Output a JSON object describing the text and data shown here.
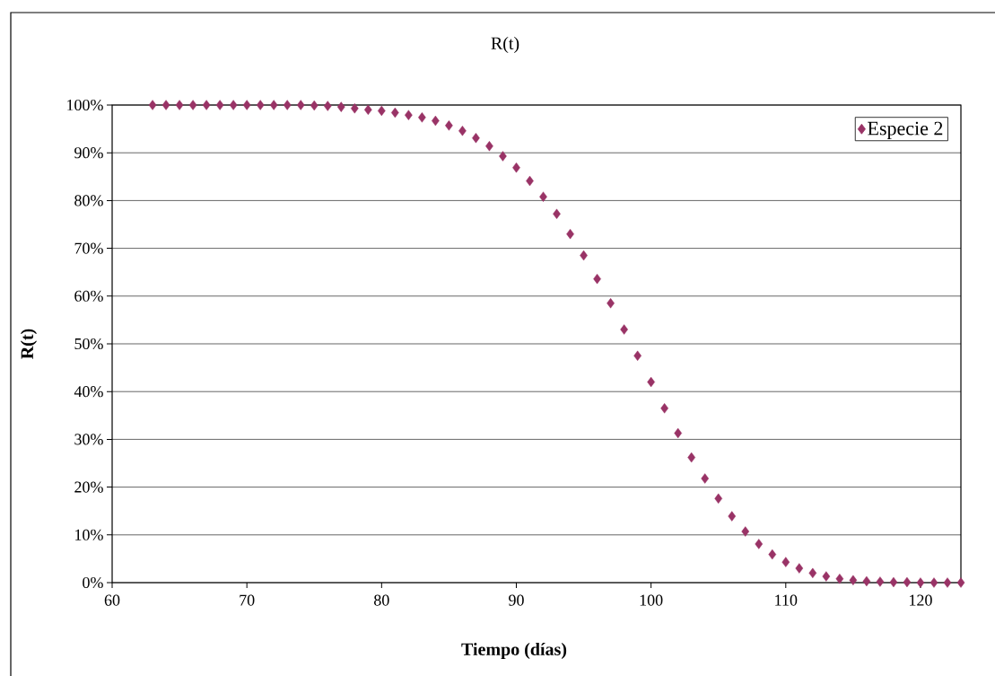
{
  "chart_data": {
    "type": "scatter",
    "title": "R(t)",
    "xlabel": "Tiempo (días)",
    "ylabel": "R(t)",
    "x": [
      63,
      64,
      65,
      66,
      67,
      68,
      69,
      70,
      71,
      72,
      73,
      74,
      75,
      76,
      77,
      78,
      79,
      80,
      81,
      82,
      83,
      84,
      85,
      86,
      87,
      88,
      89,
      90,
      91,
      92,
      93,
      94,
      95,
      96,
      97,
      98,
      99,
      100,
      101,
      102,
      103,
      104,
      105,
      106,
      107,
      108,
      109,
      110,
      111,
      112,
      113,
      114,
      115,
      116,
      117,
      118,
      119,
      120,
      121,
      122,
      123
    ],
    "series": [
      {
        "name": "Especie 2",
        "color": "#993366",
        "values": [
          100,
          100,
          100,
          100,
          100,
          100,
          100,
          100,
          100,
          100,
          100,
          100,
          99.9,
          99.8,
          99.6,
          99.3,
          99.0,
          98.8,
          98.4,
          97.9,
          97.4,
          96.7,
          95.7,
          94.6,
          93.1,
          91.4,
          89.3,
          86.9,
          84.1,
          80.8,
          77.2,
          73.0,
          68.5,
          63.6,
          58.5,
          53.0,
          47.5,
          42.0,
          36.5,
          31.3,
          26.2,
          21.8,
          17.6,
          13.9,
          10.7,
          8.1,
          5.9,
          4.3,
          3.0,
          2.0,
          1.3,
          0.8,
          0.5,
          0.3,
          0.2,
          0.1,
          0.1,
          0,
          0,
          0,
          0
        ]
      }
    ],
    "xlim": [
      60,
      123
    ],
    "xticks": [
      60,
      70,
      80,
      90,
      100,
      110,
      120
    ],
    "ylim": [
      0,
      100
    ],
    "yticks": [
      {
        "value": 0,
        "label": "0%"
      },
      {
        "value": 10,
        "label": "10%"
      },
      {
        "value": 20,
        "label": "20%"
      },
      {
        "value": 30,
        "label": "30%"
      },
      {
        "value": 40,
        "label": "40%"
      },
      {
        "value": 50,
        "label": "50%"
      },
      {
        "value": 60,
        "label": "60%"
      },
      {
        "value": 70,
        "label": "70%"
      },
      {
        "value": 80,
        "label": "80%"
      },
      {
        "value": 90,
        "label": "90%"
      },
      {
        "value": 100,
        "label": "100%"
      }
    ],
    "grid": "y",
    "legend": "top right",
    "marker": "diamond"
  }
}
